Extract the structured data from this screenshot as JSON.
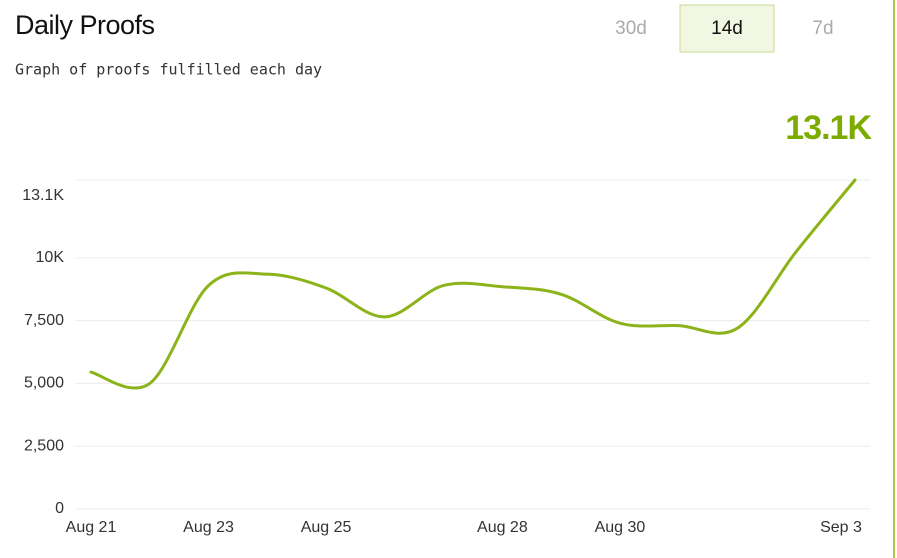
{
  "range_options": {
    "labels": [
      "30d",
      "14d",
      "7d"
    ],
    "selected_index": 1
  },
  "chart_data": {
    "type": "line",
    "title": "Daily Proofs",
    "subtitle": "Graph of proofs fulfilled each day",
    "categories": [
      "Aug 21",
      null,
      "Aug 23",
      null,
      "Aug 25",
      null,
      null,
      "Aug 28",
      null,
      "Aug 30",
      null,
      null,
      null,
      "Sep 3"
    ],
    "values": [
      5450,
      5000,
      8900,
      9350,
      8800,
      7650,
      8900,
      8850,
      8550,
      7400,
      7300,
      7200,
      10250,
      13100
    ],
    "value_labels": [
      null,
      null,
      null,
      null,
      null,
      null,
      null,
      null,
      null,
      null,
      null,
      null,
      null,
      "13.1K"
    ],
    "color": "#8db31a",
    "ylim": [
      0,
      13100
    ],
    "yticks": [
      0,
      {
        "value": 2500,
        "label": "2,500"
      },
      {
        "value": 5000,
        "label": "5,000"
      },
      {
        "value": 7500,
        "label": "7,500"
      },
      {
        "value": 10000,
        "label": "10K"
      },
      {
        "value": 13100,
        "label": "13.1K"
      }
    ],
    "grid": true
  }
}
